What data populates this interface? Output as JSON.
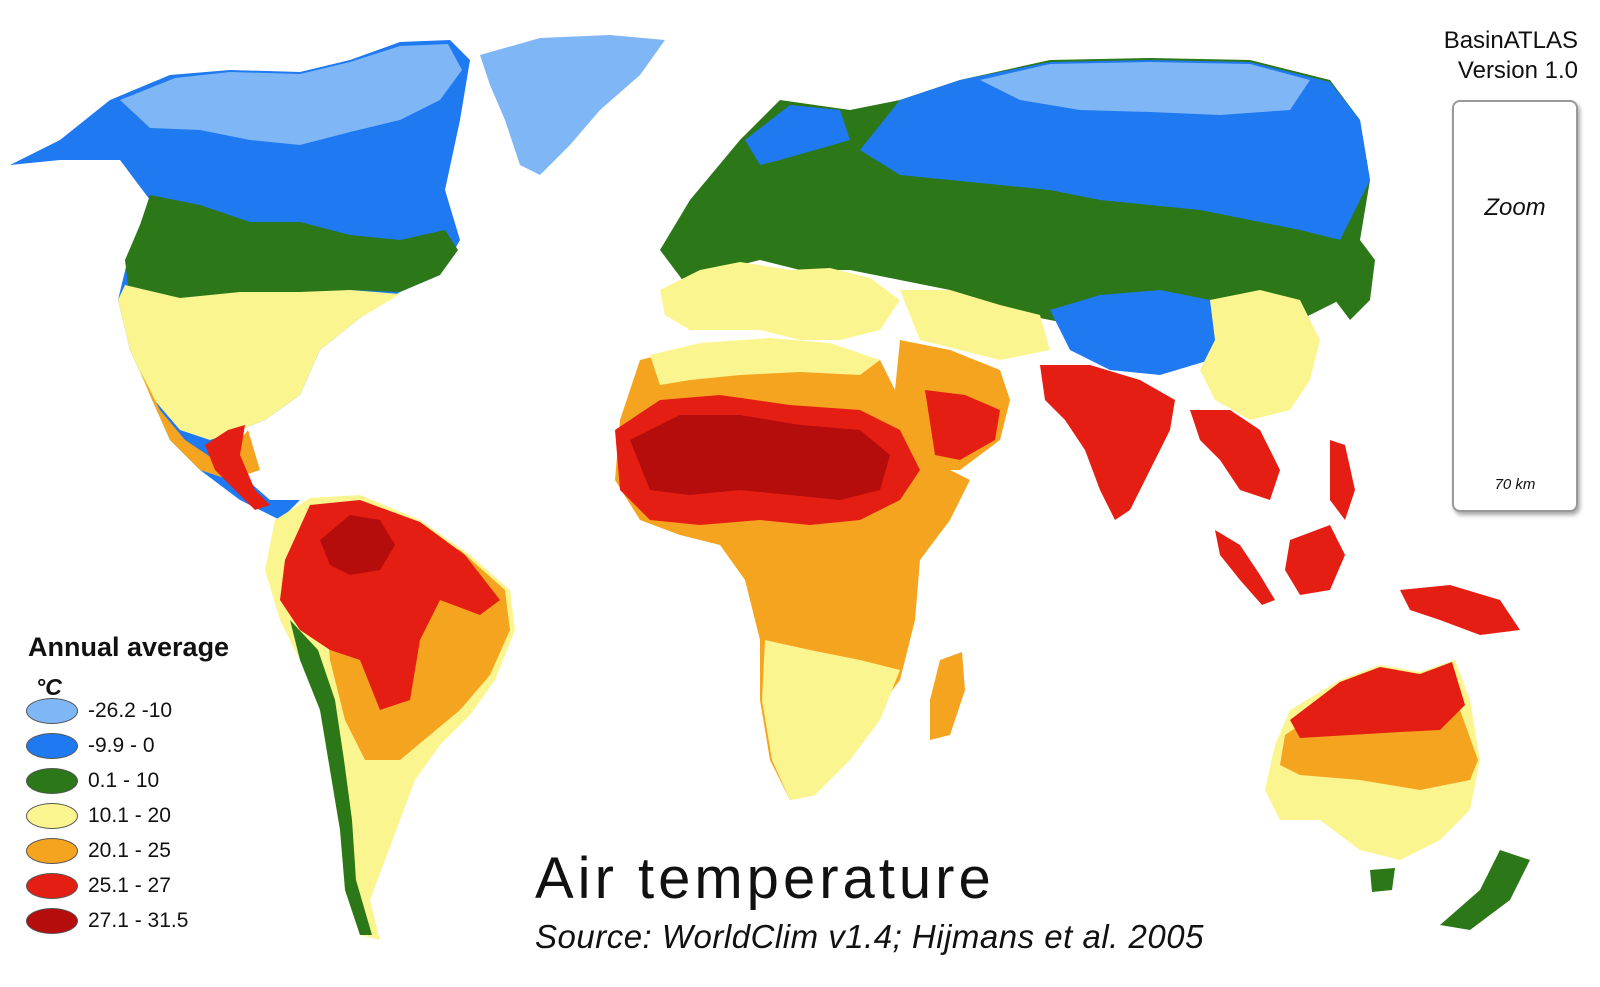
{
  "brand": {
    "line1": "BasinATLAS",
    "line2": "Version 1.0"
  },
  "zoom_inset": {
    "label": "Zoom",
    "scale": "70 km",
    "fill_color": "#ef7b55"
  },
  "legend": {
    "title": "Annual average",
    "unit": "°C",
    "classes": [
      {
        "label": "-26.2 -10",
        "color": "#7fb6f5"
      },
      {
        "label": "-9.9 - 0",
        "color": "#1f79f0"
      },
      {
        "label": "0.1 - 10",
        "color": "#2c7718"
      },
      {
        "label": "10.1 - 20",
        "color": "#fbf58f"
      },
      {
        "label": "20.1 - 25",
        "color": "#f5a41f"
      },
      {
        "label": "25.1 - 27",
        "color": "#e41e12"
      },
      {
        "label": "27.1 - 31.5",
        "color": "#b50c0c"
      }
    ]
  },
  "map": {
    "title": "Air temperature",
    "source": "Source: WorldClim v1.4; Hijmans et al. 2005"
  }
}
